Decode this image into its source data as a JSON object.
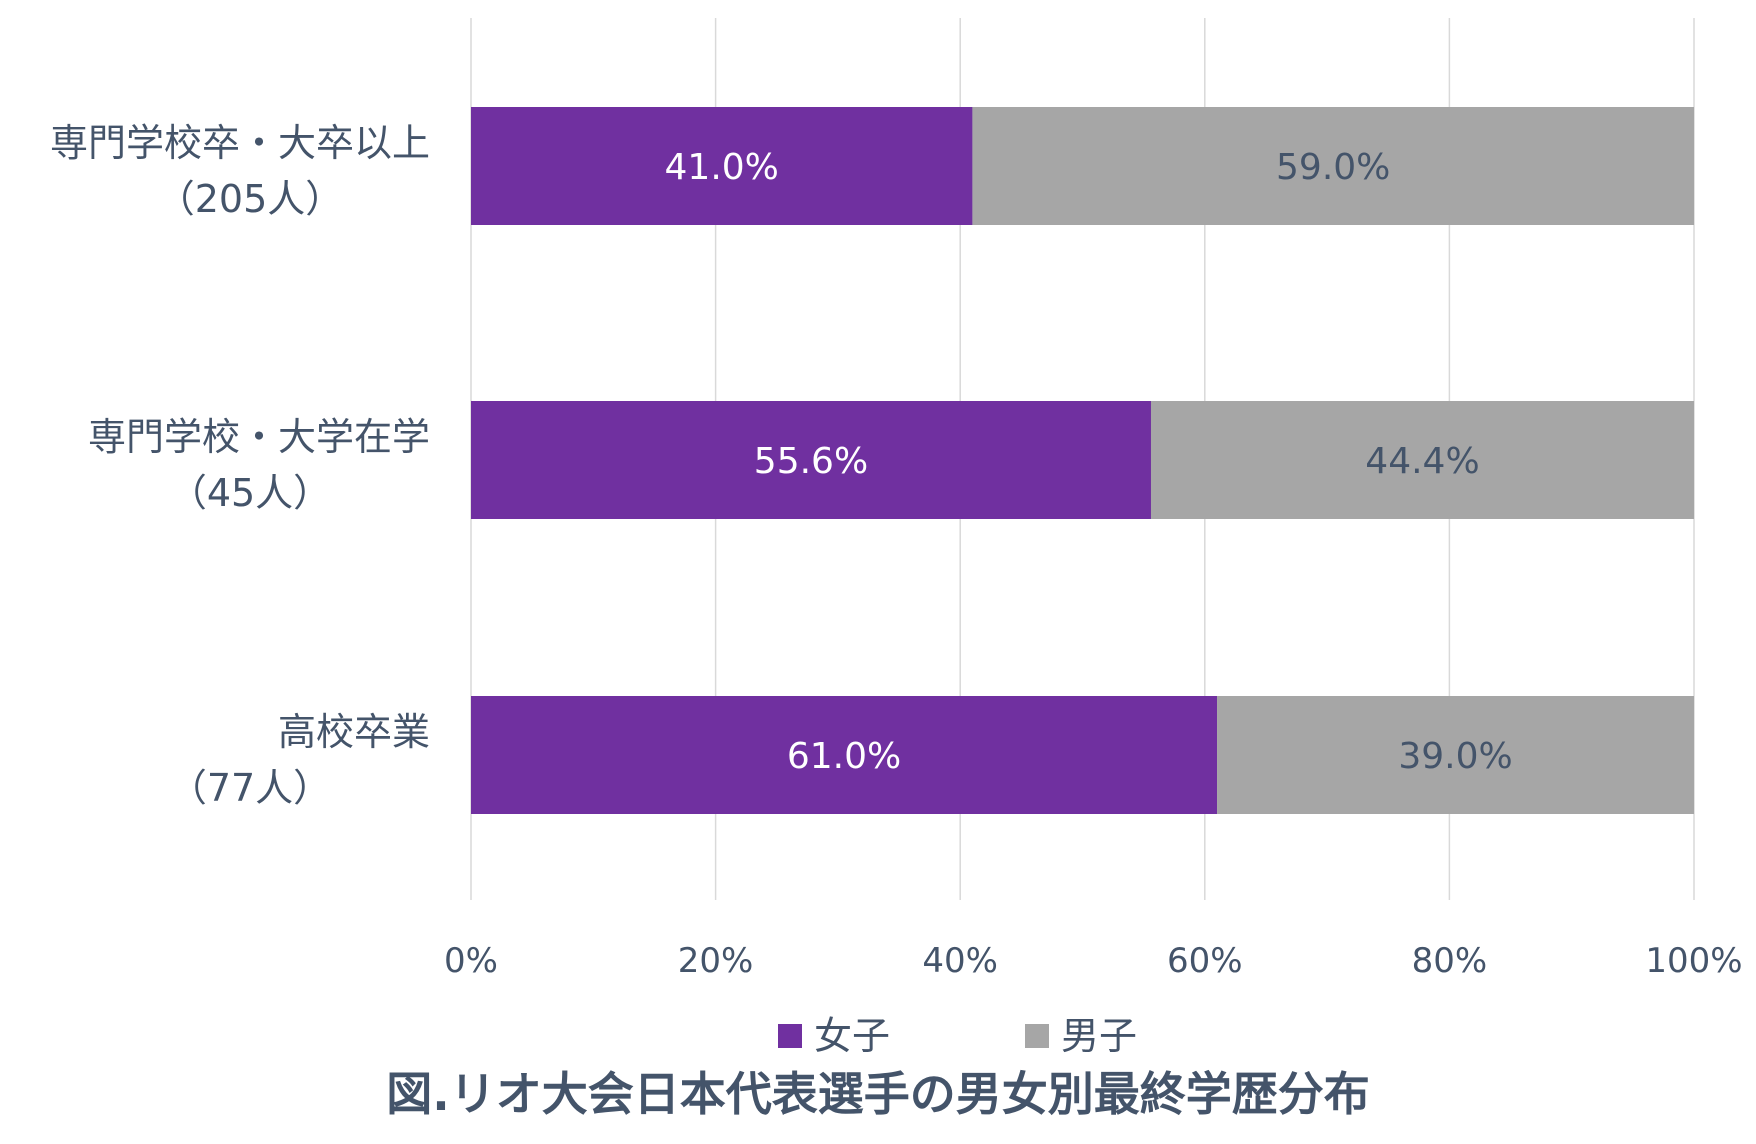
{
  "chart_data": {
    "type": "bar",
    "orientation": "horizontal",
    "stacked": "percent",
    "title": "図.リオ大会日本代表選手の男女別最終学歴分布",
    "categories": [
      [
        "専門学校卒・大卒以上",
        "（205人）"
      ],
      [
        "専門学校・大学在学",
        "（45人）"
      ],
      [
        "高校卒業",
        "（77人）"
      ]
    ],
    "series": [
      {
        "name": "女子",
        "color": "#7030a0",
        "label_color": "#ffffff",
        "values": [
          41.0,
          55.6,
          61.0
        ]
      },
      {
        "name": "男子",
        "color": "#a6a6a6",
        "label_color": "#44546a",
        "values": [
          59.0,
          44.4,
          39.0
        ]
      }
    ],
    "x_ticks": [
      "0%",
      "20%",
      "40%",
      "60%",
      "80%",
      "100%"
    ],
    "xlim": [
      0,
      100
    ],
    "grid": true,
    "legend_position": "bottom"
  }
}
